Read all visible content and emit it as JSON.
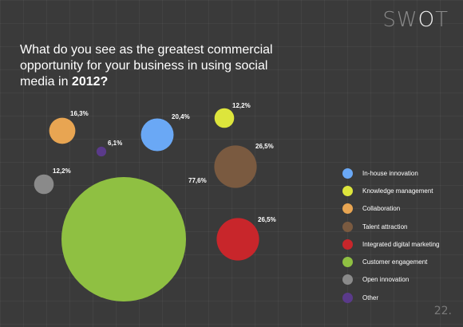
{
  "logo": {
    "prefix": "SW",
    "accent": "O",
    "suffix": "T"
  },
  "question": {
    "text": "What do you see as the greatest commercial opportunity for your business in using social media in ",
    "year": "2012?"
  },
  "page_number": "22.",
  "chart_data": {
    "type": "bubble",
    "title": "What do you see as the greatest commercial opportunity for your business in using social media in 2012?",
    "unit": "%",
    "legend_position": "right",
    "series": [
      {
        "name": "In-house innovation",
        "value": 20.4,
        "label": "20,4%",
        "color": "#6aa8f5"
      },
      {
        "name": "Knowledge management",
        "value": 12.2,
        "label": "12,2%",
        "color": "#dde53c"
      },
      {
        "name": "Collaboration",
        "value": 16.3,
        "label": "16,3%",
        "color": "#e8a552"
      },
      {
        "name": "Talent attraction",
        "value": 26.5,
        "label": "26,5%",
        "color": "#7a5a40"
      },
      {
        "name": "Integrated digital marketing",
        "value": 26.5,
        "label": "26,5%",
        "color": "#c8262b"
      },
      {
        "name": "Customer engagement",
        "value": 77.6,
        "label": "77,6%",
        "color": "#8fc042"
      },
      {
        "name": "Open innovation",
        "value": 12.2,
        "label": "12,2%",
        "color": "#8a8a8a"
      },
      {
        "name": "Other",
        "value": 6.1,
        "label": "6,1%",
        "color": "#5a3a8a"
      }
    ]
  }
}
